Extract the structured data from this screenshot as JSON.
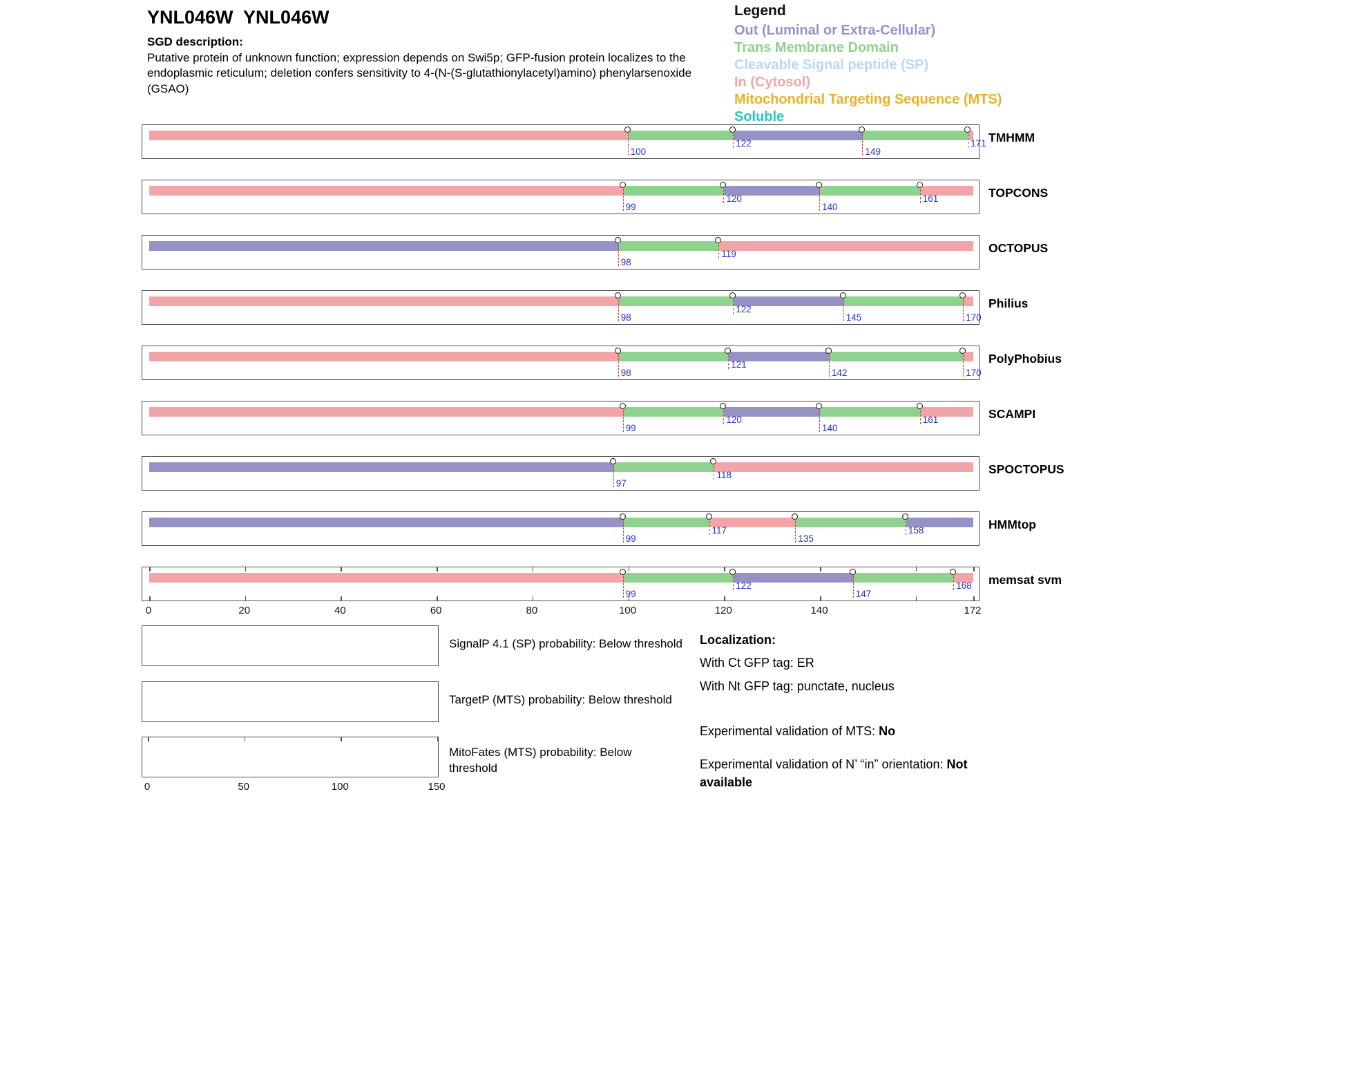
{
  "header": {
    "title": "YNL046W  YNL046W",
    "sgd_label": "SGD description:",
    "sgd_description": "Putative protein of unknown function; expression depends on Swi5p; GFP-fusion protein localizes to the endoplasmic reticulum; deletion confers sensitivity to 4-(N-(S-glutathionylacetyl)amino) phenylarsenoxide (GSAO)"
  },
  "legend": {
    "title": "Legend",
    "items": [
      {
        "label": "Out (Luminal or Extra-Cellular)",
        "color": "#9593c6"
      },
      {
        "label": "Trans Membrane Domain",
        "color": "#8fd28f"
      },
      {
        "label": "Cleavable Signal peptide (SP)",
        "color": "#b9d9f2"
      },
      {
        "label": "In (Cytosol)",
        "color": "#f2a5a8"
      },
      {
        "label": "Mitochondrial Targeting Sequence (MTS)",
        "color": "#efaf26"
      },
      {
        "label": "Soluble",
        "color": "#29c5c1"
      }
    ]
  },
  "chart_data": {
    "type": "bar",
    "subtype": "horizontal-stacked-topology-tracks",
    "x_axis": {
      "min": 0,
      "max": 172,
      "tick_labels": [
        0,
        20,
        40,
        60,
        80,
        100,
        120,
        140,
        172
      ],
      "tick_marks": [
        0,
        20,
        40,
        60,
        80,
        100,
        120,
        140,
        160,
        172
      ]
    },
    "colors": {
      "in": "#f2a5a8",
      "tm": "#8fd28f",
      "out": "#9593c6"
    },
    "tracks": [
      {
        "name": "TMHMM",
        "segments": [
          {
            "from": 0,
            "to": 100,
            "type": "in"
          },
          {
            "from": 100,
            "to": 122,
            "type": "tm"
          },
          {
            "from": 122,
            "to": 149,
            "type": "out"
          },
          {
            "from": 149,
            "to": 171,
            "type": "tm"
          },
          {
            "from": 171,
            "to": 172,
            "type": "in"
          }
        ],
        "markers": [
          {
            "pos": 100,
            "level": "low"
          },
          {
            "pos": 122,
            "level": "high"
          },
          {
            "pos": 149,
            "level": "low"
          },
          {
            "pos": 171,
            "level": "high"
          }
        ]
      },
      {
        "name": "TOPCONS",
        "segments": [
          {
            "from": 0,
            "to": 99,
            "type": "in"
          },
          {
            "from": 99,
            "to": 120,
            "type": "tm"
          },
          {
            "from": 120,
            "to": 140,
            "type": "out"
          },
          {
            "from": 140,
            "to": 161,
            "type": "tm"
          },
          {
            "from": 161,
            "to": 172,
            "type": "in"
          }
        ],
        "markers": [
          {
            "pos": 99,
            "level": "low"
          },
          {
            "pos": 120,
            "level": "high"
          },
          {
            "pos": 140,
            "level": "low"
          },
          {
            "pos": 161,
            "level": "high"
          }
        ]
      },
      {
        "name": "OCTOPUS",
        "segments": [
          {
            "from": 0,
            "to": 98,
            "type": "out"
          },
          {
            "from": 98,
            "to": 119,
            "type": "tm"
          },
          {
            "from": 119,
            "to": 172,
            "type": "in"
          }
        ],
        "markers": [
          {
            "pos": 98,
            "level": "low"
          },
          {
            "pos": 119,
            "level": "high"
          }
        ]
      },
      {
        "name": "Philius",
        "segments": [
          {
            "from": 0,
            "to": 98,
            "type": "in"
          },
          {
            "from": 98,
            "to": 122,
            "type": "tm"
          },
          {
            "from": 122,
            "to": 145,
            "type": "out"
          },
          {
            "from": 145,
            "to": 170,
            "type": "tm"
          },
          {
            "from": 170,
            "to": 172,
            "type": "in"
          }
        ],
        "markers": [
          {
            "pos": 98,
            "level": "low"
          },
          {
            "pos": 122,
            "level": "high"
          },
          {
            "pos": 145,
            "level": "low"
          },
          {
            "pos": 170,
            "level": "low"
          }
        ]
      },
      {
        "name": "PolyPhobius",
        "segments": [
          {
            "from": 0,
            "to": 98,
            "type": "in"
          },
          {
            "from": 98,
            "to": 121,
            "type": "tm"
          },
          {
            "from": 121,
            "to": 142,
            "type": "out"
          },
          {
            "from": 142,
            "to": 170,
            "type": "tm"
          },
          {
            "from": 170,
            "to": 172,
            "type": "in"
          }
        ],
        "markers": [
          {
            "pos": 98,
            "level": "low"
          },
          {
            "pos": 121,
            "level": "high"
          },
          {
            "pos": 142,
            "level": "low"
          },
          {
            "pos": 170,
            "level": "low"
          }
        ]
      },
      {
        "name": "SCAMPI",
        "segments": [
          {
            "from": 0,
            "to": 99,
            "type": "in"
          },
          {
            "from": 99,
            "to": 120,
            "type": "tm"
          },
          {
            "from": 120,
            "to": 140,
            "type": "out"
          },
          {
            "from": 140,
            "to": 161,
            "type": "tm"
          },
          {
            "from": 161,
            "to": 172,
            "type": "in"
          }
        ],
        "markers": [
          {
            "pos": 99,
            "level": "low"
          },
          {
            "pos": 120,
            "level": "high"
          },
          {
            "pos": 140,
            "level": "low"
          },
          {
            "pos": 161,
            "level": "high"
          }
        ]
      },
      {
        "name": "SPOCTOPUS",
        "segments": [
          {
            "from": 0,
            "to": 97,
            "type": "out"
          },
          {
            "from": 97,
            "to": 118,
            "type": "tm"
          },
          {
            "from": 118,
            "to": 172,
            "type": "in"
          }
        ],
        "markers": [
          {
            "pos": 97,
            "level": "low"
          },
          {
            "pos": 118,
            "level": "high"
          }
        ]
      },
      {
        "name": "HMMtop",
        "segments": [
          {
            "from": 0,
            "to": 99,
            "type": "out"
          },
          {
            "from": 99,
            "to": 117,
            "type": "tm"
          },
          {
            "from": 117,
            "to": 135,
            "type": "in"
          },
          {
            "from": 135,
            "to": 158,
            "type": "tm"
          },
          {
            "from": 158,
            "to": 172,
            "type": "out"
          }
        ],
        "markers": [
          {
            "pos": 99,
            "level": "low"
          },
          {
            "pos": 117,
            "level": "high"
          },
          {
            "pos": 135,
            "level": "low"
          },
          {
            "pos": 158,
            "level": "high"
          }
        ]
      },
      {
        "name": "memsat svm",
        "show_axis_ticks": true,
        "segments": [
          {
            "from": 0,
            "to": 99,
            "type": "in"
          },
          {
            "from": 99,
            "to": 122,
            "type": "tm"
          },
          {
            "from": 122,
            "to": 147,
            "type": "out"
          },
          {
            "from": 147,
            "to": 168,
            "type": "tm"
          },
          {
            "from": 168,
            "to": 172,
            "type": "in"
          }
        ],
        "markers": [
          {
            "pos": 99,
            "level": "low"
          },
          {
            "pos": 122,
            "level": "high"
          },
          {
            "pos": 147,
            "level": "low"
          },
          {
            "pos": 168,
            "level": "high"
          }
        ]
      }
    ]
  },
  "probability_plots": [
    {
      "caption": "SignalP 4.1 (SP) probability: Below threshold",
      "axis": null
    },
    {
      "caption": "TargetP (MTS) probability: Below threshold",
      "axis": null
    },
    {
      "caption": "MitoFates (MTS) probability: Below threshold",
      "axis": {
        "min": 0,
        "max": 150,
        "ticks": [
          0,
          50,
          100,
          150
        ]
      }
    }
  ],
  "localization": {
    "title": "Localization:",
    "ct_line": "With Ct GFP tag: ER",
    "nt_line": "With Nt GFP tag: punctate, nucleus",
    "mts_label": "Experimental validation of MTS:",
    "mts_value": "No",
    "orientation_label": "Experimental validation of N’ “in” orientation:",
    "orientation_value": "Not available"
  }
}
